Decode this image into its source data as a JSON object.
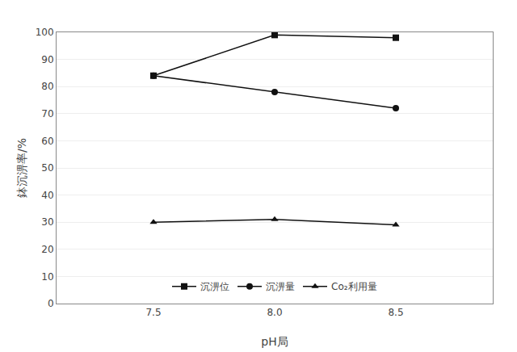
{
  "chart_data": {
    "type": "line",
    "x": [
      7.5,
      8.0,
      8.5
    ],
    "xlabel": "pH局",
    "ylabel": "鉢沉淠率/%",
    "xlim": [
      7.1,
      8.9
    ],
    "xticks": [
      7.5,
      {
        "value": 8.0,
        "label": "8.0"
      },
      8.5
    ],
    "ylim": [
      0,
      100
    ],
    "yticks": [
      0,
      10,
      20,
      30,
      40,
      50,
      60,
      70,
      80,
      90,
      100
    ],
    "grid": "y",
    "legend": "bottom",
    "series": [
      {
        "name": "沉淠位",
        "color": "#111111",
        "marker": "square",
        "values": [
          84,
          99,
          98
        ]
      },
      {
        "name": "沉淠量",
        "color": "#111111",
        "marker": "circle",
        "values": [
          84,
          78,
          72
        ]
      },
      {
        "name": "Co₂利用量",
        "color": "#111111",
        "marker": "triangle-up",
        "values": [
          30,
          31,
          29
        ]
      }
    ]
  }
}
